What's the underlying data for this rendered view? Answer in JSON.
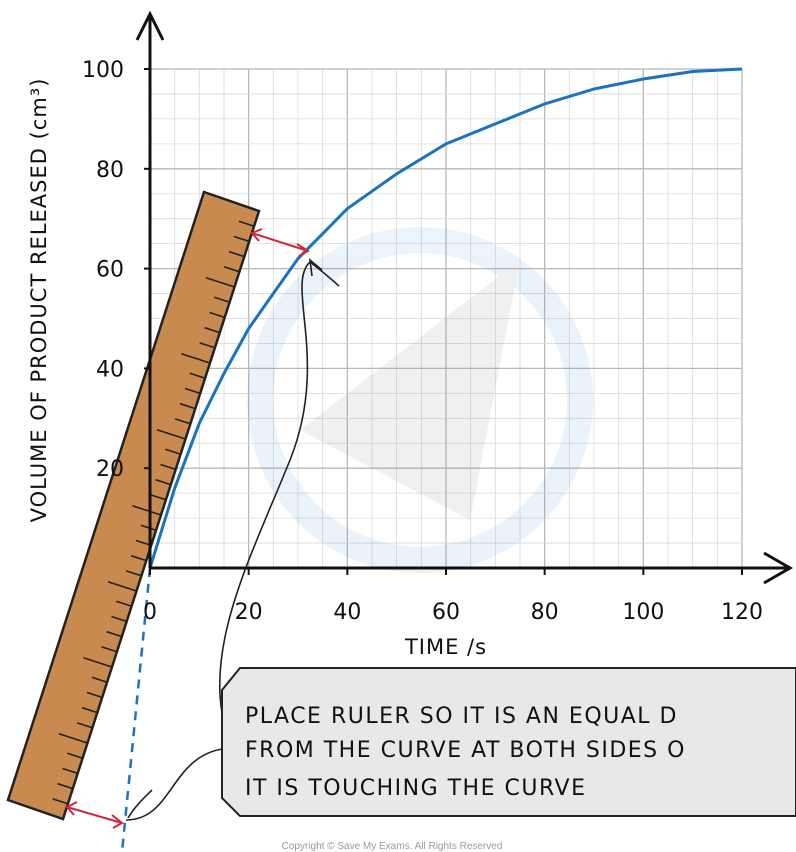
{
  "colors": {
    "curve": "#1a73c0",
    "ruler": "#c88a4f",
    "arrow": "#d6263c",
    "callout_fill": "#e8e8e8",
    "grid_minor": "#d9d9d9",
    "grid_major": "#b8b8b8"
  },
  "chart_data": {
    "type": "line",
    "xlabel": "TIME /s",
    "ylabel": "VOLUME OF PRODUCT RELEASED (cm³)",
    "xlim": [
      0,
      120
    ],
    "ylim": [
      0,
      100
    ],
    "x_ticks": [
      "0",
      "20",
      "40",
      "60",
      "80",
      "100",
      "120"
    ],
    "y_ticks": [
      "20",
      "40",
      "60",
      "80",
      "100"
    ],
    "grid": true,
    "series": [
      {
        "x": [
          0,
          5,
          10,
          15,
          20,
          25,
          30,
          35,
          40,
          50,
          60,
          70,
          80,
          90,
          100,
          110,
          120
        ],
        "y": [
          0,
          16,
          29,
          39,
          48,
          55,
          62,
          67,
          72,
          79,
          85,
          89,
          93,
          96,
          98,
          99.5,
          100
        ]
      }
    ],
    "annotations": {
      "note_lines": [
        "PLACE RULER SO IT IS AN EQUAL D",
        "FROM THE CURVE AT BOTH SIDES O",
        "IT IS TOUCHING THE CURVE"
      ]
    }
  },
  "footer": {
    "copyright": "Copyright © Save My Exams. All Rights Reserved"
  }
}
